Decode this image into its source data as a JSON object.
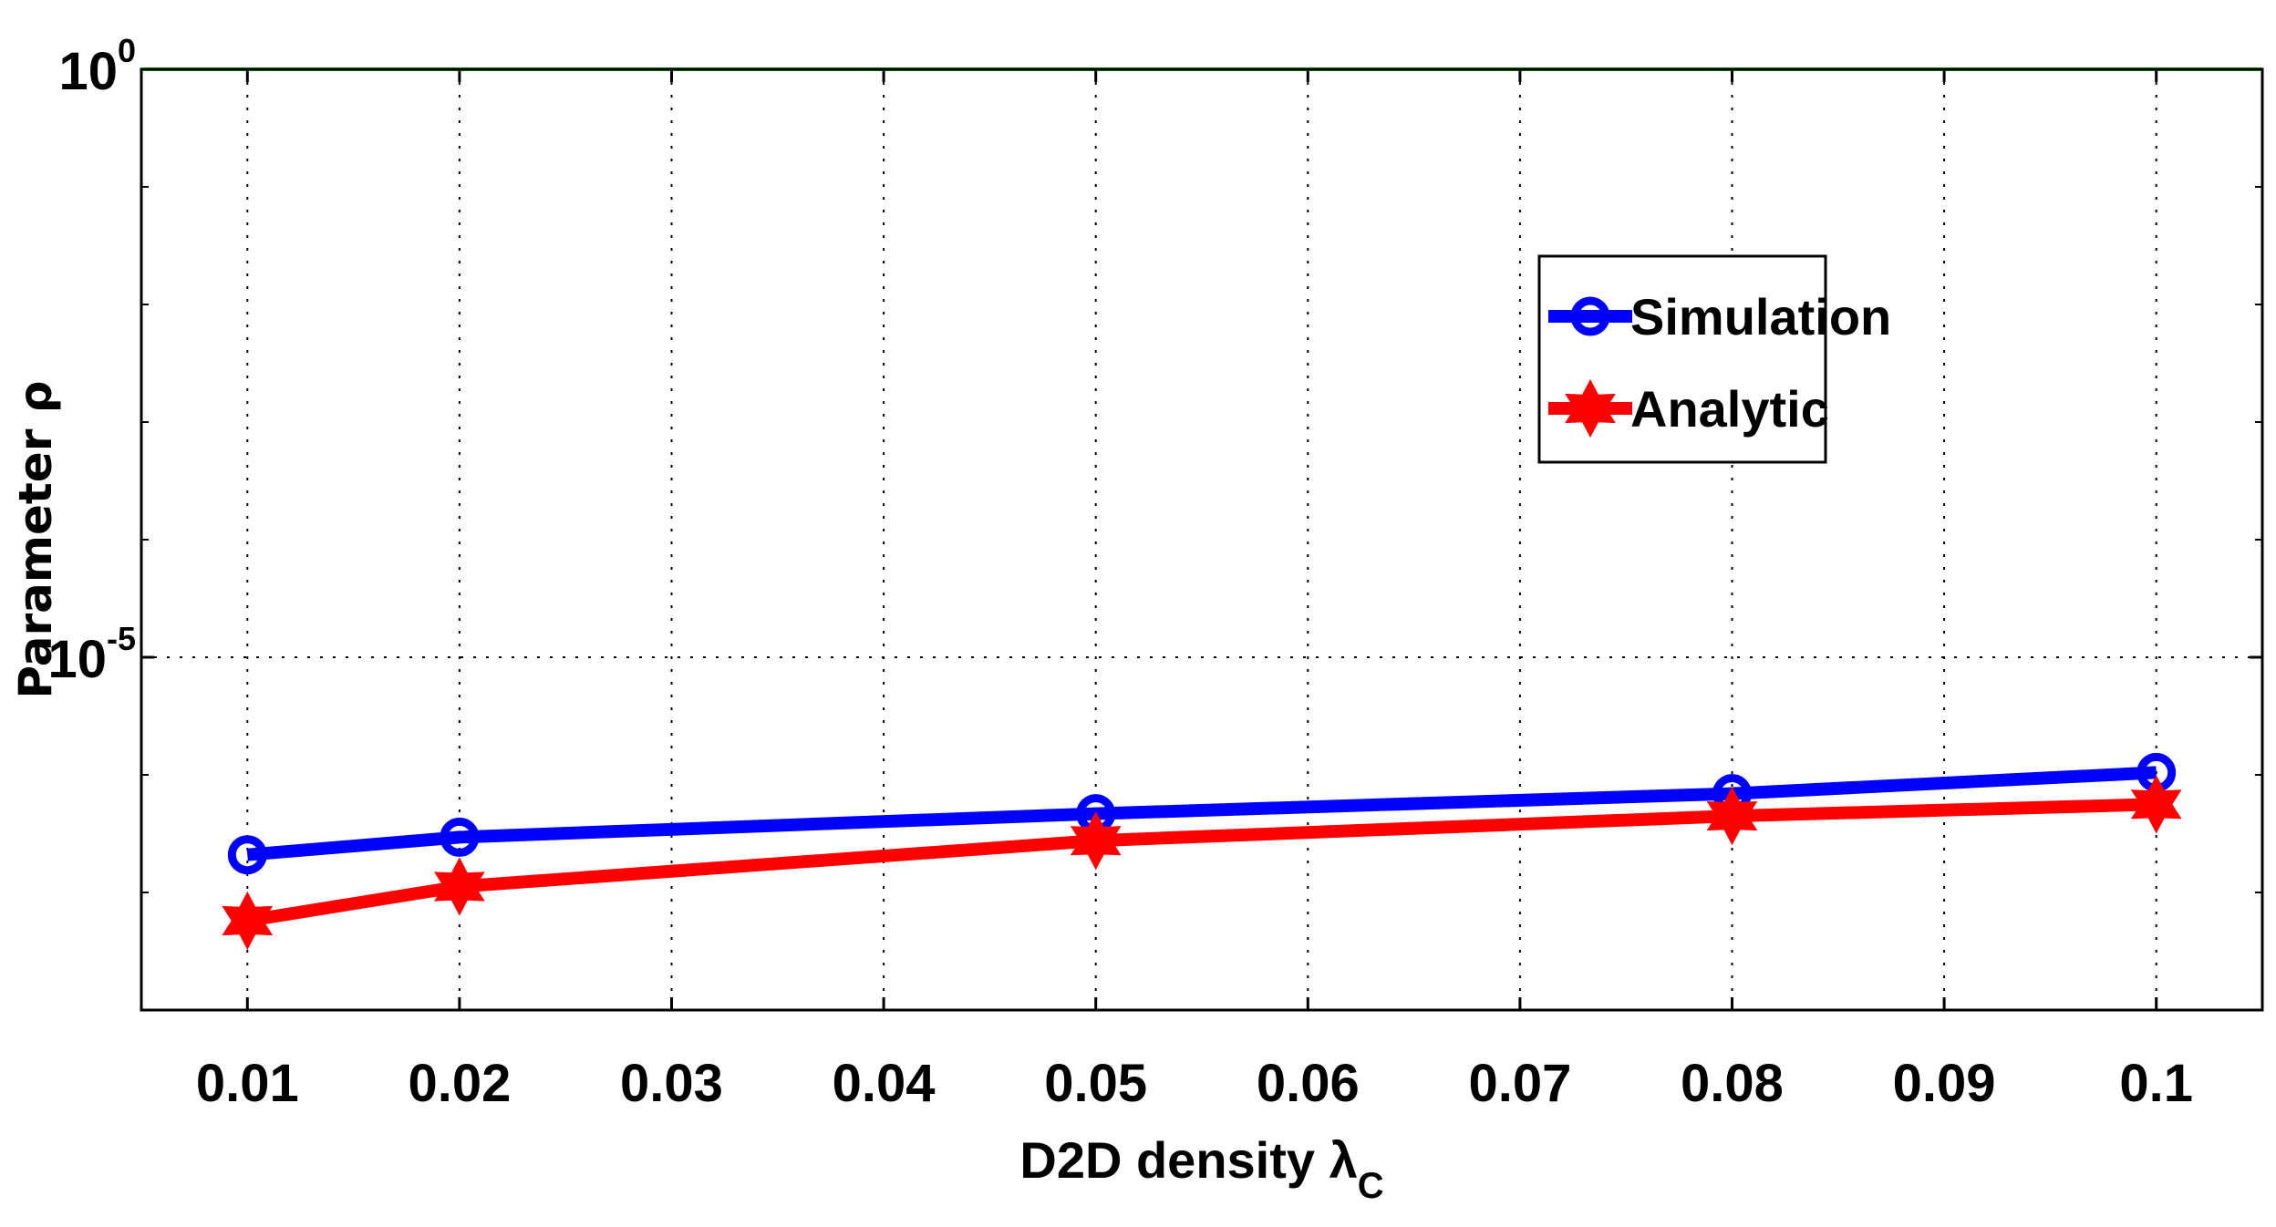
{
  "chart_data": {
    "type": "line",
    "title": "",
    "xlabel": "D2D density λ",
    "xlabel_subscript": "C",
    "ylabel": "Parameter ρ",
    "yscale": "log",
    "xlim": [
      0.005,
      0.105
    ],
    "ylim_exponent": [
      -8,
      0
    ],
    "x_ticks": [
      "0.01",
      "0.02",
      "0.03",
      "0.04",
      "0.05",
      "0.06",
      "0.07",
      "0.08",
      "0.09",
      "0.1"
    ],
    "x_tick_values": [
      0.01,
      0.02,
      0.03,
      0.04,
      0.05,
      0.06,
      0.07,
      0.08,
      0.09,
      0.1
    ],
    "y_ticks": [
      {
        "base": "10",
        "exp": "0",
        "value_exponent": 0
      },
      {
        "base": "10",
        "exp": "-5",
        "value_exponent": -5
      }
    ],
    "grid": true,
    "legend_position": "upper-right",
    "series": [
      {
        "name": "Simulation",
        "color": "#0000ff",
        "marker": "circle",
        "x": [
          0.01,
          0.02,
          0.05,
          0.08,
          0.1
        ],
        "log10_values": [
          -6.68,
          -6.53,
          -6.33,
          -6.16,
          -5.98
        ]
      },
      {
        "name": "Analytic",
        "color": "#ff0000",
        "marker": "hexagram",
        "x": [
          0.01,
          0.02,
          0.05,
          0.08,
          0.1
        ],
        "log10_values": [
          -7.24,
          -6.95,
          -6.56,
          -6.35,
          -6.25
        ]
      }
    ],
    "reference_line": {
      "color": "#00cc00",
      "log10_value": 0
    }
  }
}
